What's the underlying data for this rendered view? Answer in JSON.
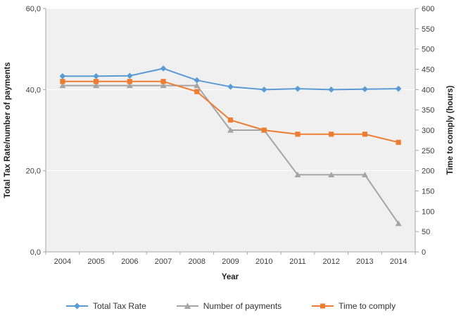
{
  "chart_data": {
    "type": "line",
    "title": "",
    "categories": [
      "2004",
      "2005",
      "2006",
      "2007",
      "2008",
      "2009",
      "2010",
      "2011",
      "2012",
      "2013",
      "2014"
    ],
    "x_axis": {
      "label": "Year"
    },
    "left_axis": {
      "label": "Total Tax Rate/number of payments",
      "min": 0,
      "max": 60,
      "step": 20,
      "tick_labels": [
        "0,0",
        "20,0",
        "40,0",
        "60,0"
      ]
    },
    "right_axis": {
      "label": "Time to comply (hours)",
      "min": 0,
      "max": 600,
      "step": 50,
      "tick_labels": [
        "0",
        "50",
        "100",
        "150",
        "200",
        "250",
        "300",
        "350",
        "400",
        "450",
        "500",
        "550",
        "600"
      ]
    },
    "series": [
      {
        "name": "Total Tax Rate",
        "axis": "left",
        "marker": "diamond",
        "color": "#5B9BD5",
        "values": [
          43.3,
          43.3,
          43.4,
          45.2,
          42.3,
          40.7,
          40.0,
          40.2,
          40.0,
          40.1,
          40.2
        ]
      },
      {
        "name": "Number of payments",
        "axis": "left",
        "marker": "triangle",
        "color": "#A5A5A5",
        "values": [
          41,
          41,
          41,
          41,
          41,
          30,
          30,
          19,
          19,
          19,
          7
        ]
      },
      {
        "name": "Time to comply",
        "axis": "right",
        "marker": "square",
        "color": "#ED7D31",
        "values": [
          420,
          420,
          420,
          420,
          395,
          325,
          300,
          290,
          290,
          290,
          270
        ]
      }
    ],
    "legend_position": "bottom",
    "grid": true,
    "colors": {
      "plot_background": "#F0F0F0",
      "gridline": "#FFFFFF",
      "axis_line": "#A6A6A6",
      "tick_text": "#3C3C3C",
      "title_text": "#1F1F1F"
    }
  }
}
